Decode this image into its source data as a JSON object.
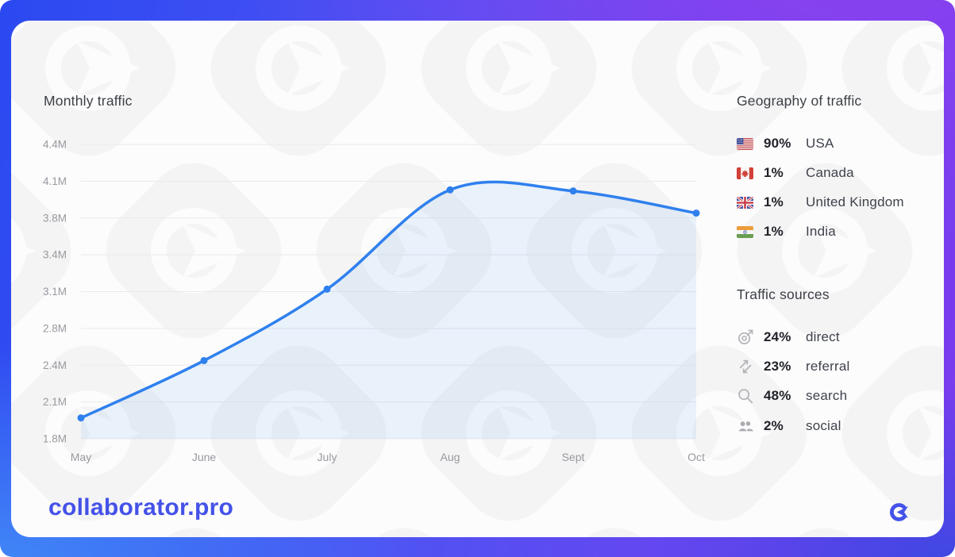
{
  "brand": {
    "name": "collaborator.pro",
    "accent": "#4452e8"
  },
  "chart_data": {
    "type": "area",
    "title": "Monthly traffic",
    "categories": [
      "May",
      "June",
      "July",
      "Aug",
      "Sept",
      "Oct"
    ],
    "series": [
      {
        "name": "Monthly traffic (millions)",
        "values": [
          1.97,
          2.45,
          3.12,
          4.03,
          4.02,
          3.84
        ]
      }
    ],
    "value_unit": "M",
    "y_ticks": {
      "labels": [
        "1.8M",
        "2.1M",
        "2.4M",
        "2.8M",
        "3.1M",
        "3.4M",
        "3.8M",
        "4.1M",
        "4.4M"
      ],
      "values": [
        1.8,
        2.1,
        2.4,
        2.8,
        3.1,
        3.4,
        3.8,
        4.1,
        4.4
      ]
    },
    "ylim": [
      1.8,
      4.4
    ],
    "y_scale_note": "ticks equally spaced in pixels",
    "grid": true,
    "legend": "none",
    "colors": {
      "line": "#2f80ed",
      "area_alpha": 0.09,
      "grid": "#e9eaec",
      "tick_text": "#97999e"
    }
  },
  "geography": {
    "title": "Geography of traffic",
    "rows": [
      {
        "flag": "usa-flag",
        "percent": "90%",
        "country": "USA"
      },
      {
        "flag": "canada-flag",
        "percent": "1%",
        "country": "Canada"
      },
      {
        "flag": "uk-flag",
        "percent": "1%",
        "country": "United Kingdom"
      },
      {
        "flag": "india-flag",
        "percent": "1%",
        "country": "India"
      }
    ]
  },
  "traffic_sources": {
    "title": "Traffic sources",
    "rows": [
      {
        "icon": "target-icon",
        "percent": "24%",
        "label": "direct"
      },
      {
        "icon": "referral-arrows-icon",
        "percent": "23%",
        "label": "referral"
      },
      {
        "icon": "search-icon",
        "percent": "48%",
        "label": "search"
      },
      {
        "icon": "users-icon",
        "percent": "2%",
        "label": "social"
      }
    ]
  }
}
